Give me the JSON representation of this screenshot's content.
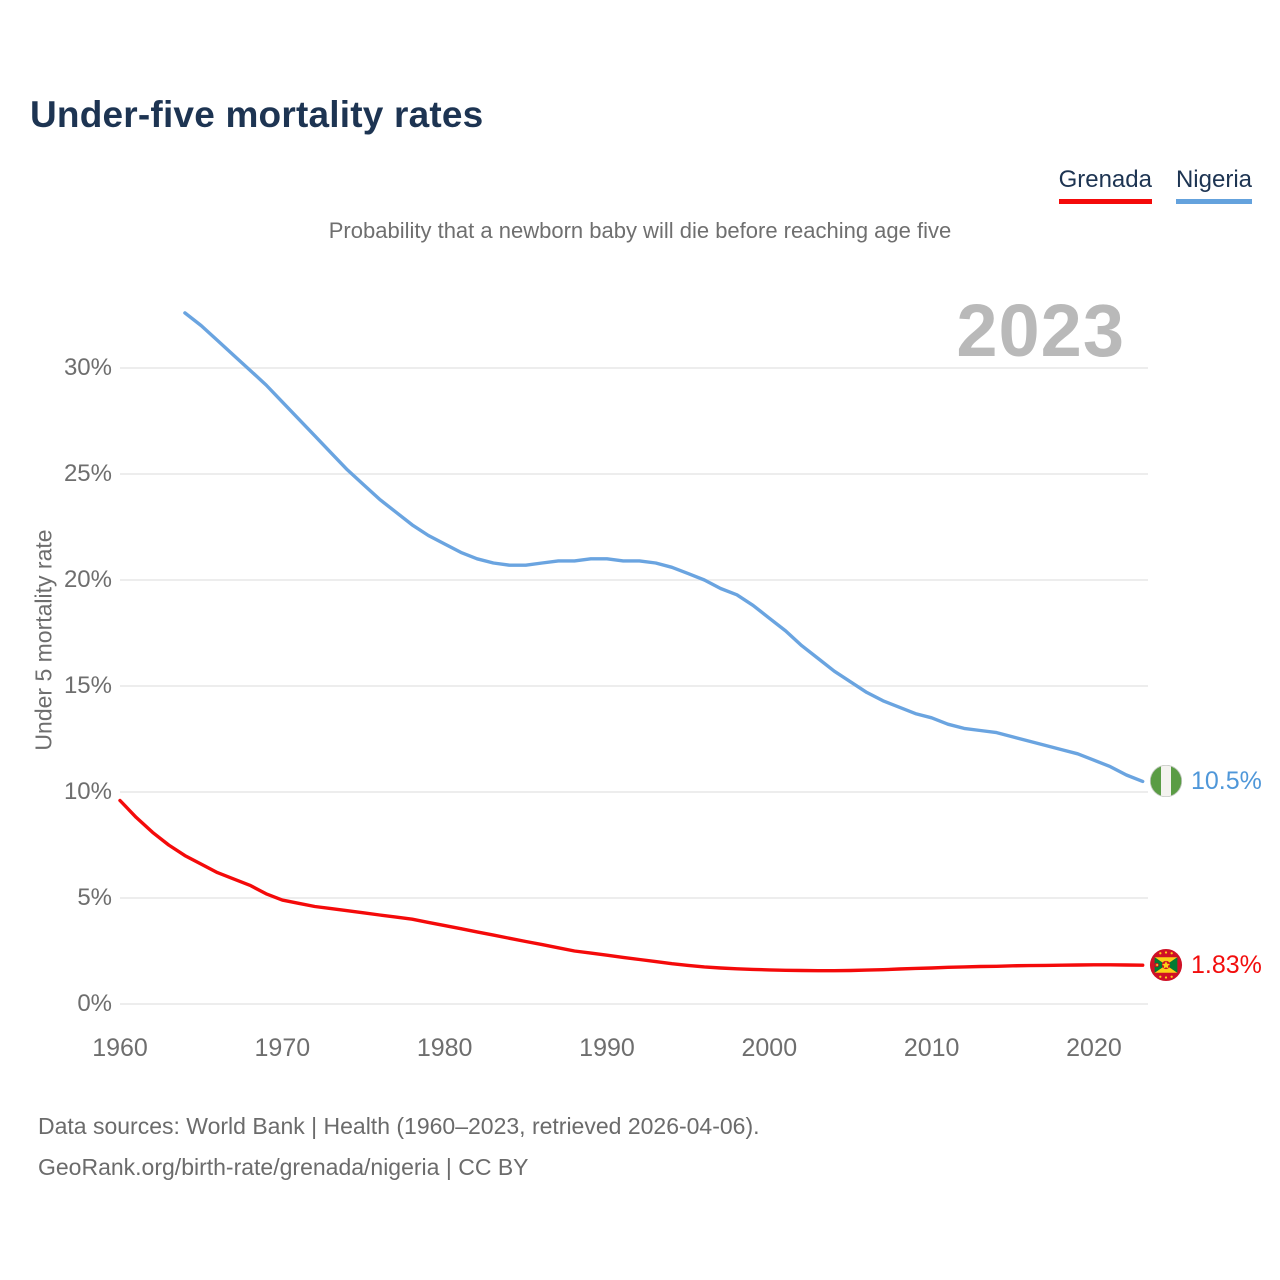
{
  "header": {
    "title": "Under-five mortality rates",
    "subtitle": "Probability that a newborn baby will die before reaching age five",
    "watermark_year": "2023"
  },
  "legend": {
    "items": [
      {
        "label": "Grenada",
        "color": "#f40a0a"
      },
      {
        "label": "Nigeria",
        "color": "#64a2dd"
      }
    ]
  },
  "footer": {
    "line1": "Data sources: World Bank | Health (1960–2023, retrieved 2026-04-06).",
    "line2": "GeoRank.org/birth-rate/grenada/nigeria | CC BY"
  },
  "chart_data": {
    "type": "line",
    "title": "Under-five mortality rates",
    "subtitle": "Probability that a newborn baby will die before reaching age five",
    "xlabel": "",
    "ylabel": "Under 5 mortality rate",
    "xlim": [
      1958.5,
      2024.5
    ],
    "ylim": [
      0,
      33.2
    ],
    "grid": "horizontal",
    "gridline_color": "#e7e7e7",
    "legend_position": "top-right",
    "xticks": [
      1960,
      1970,
      1980,
      1990,
      2000,
      2010,
      2020
    ],
    "yticks": [
      {
        "value": 0,
        "label": "0%"
      },
      {
        "value": 5,
        "label": "5%"
      },
      {
        "value": 10,
        "label": "10%"
      },
      {
        "value": 15,
        "label": "15%"
      },
      {
        "value": 20,
        "label": "20%"
      },
      {
        "value": 25,
        "label": "25%"
      },
      {
        "value": 30,
        "label": "30%"
      }
    ],
    "series": [
      {
        "name": "Grenada",
        "color": "#f40a0a",
        "end_label": "1.83%",
        "flag_icon": "grenada-flag",
        "points": [
          [
            1960,
            9.6
          ],
          [
            1961,
            8.8
          ],
          [
            1962,
            8.1
          ],
          [
            1963,
            7.5
          ],
          [
            1964,
            7.0
          ],
          [
            1965,
            6.6
          ],
          [
            1966,
            6.2
          ],
          [
            1967,
            5.9
          ],
          [
            1968,
            5.6
          ],
          [
            1969,
            5.2
          ],
          [
            1970,
            4.9
          ],
          [
            1971,
            4.75
          ],
          [
            1972,
            4.6
          ],
          [
            1973,
            4.5
          ],
          [
            1974,
            4.4
          ],
          [
            1975,
            4.3
          ],
          [
            1976,
            4.2
          ],
          [
            1977,
            4.1
          ],
          [
            1978,
            4.0
          ],
          [
            1979,
            3.85
          ],
          [
            1980,
            3.7
          ],
          [
            1981,
            3.55
          ],
          [
            1982,
            3.4
          ],
          [
            1983,
            3.25
          ],
          [
            1984,
            3.1
          ],
          [
            1985,
            2.95
          ],
          [
            1986,
            2.8
          ],
          [
            1987,
            2.65
          ],
          [
            1988,
            2.5
          ],
          [
            1989,
            2.4
          ],
          [
            1990,
            2.3
          ],
          [
            1991,
            2.2
          ],
          [
            1992,
            2.1
          ],
          [
            1993,
            2.0
          ],
          [
            1994,
            1.9
          ],
          [
            1995,
            1.82
          ],
          [
            1996,
            1.75
          ],
          [
            1997,
            1.7
          ],
          [
            1998,
            1.66
          ],
          [
            1999,
            1.63
          ],
          [
            2000,
            1.61
          ],
          [
            2001,
            1.59
          ],
          [
            2002,
            1.58
          ],
          [
            2003,
            1.57
          ],
          [
            2004,
            1.57
          ],
          [
            2005,
            1.58
          ],
          [
            2006,
            1.6
          ],
          [
            2007,
            1.62
          ],
          [
            2008,
            1.65
          ],
          [
            2009,
            1.68
          ],
          [
            2010,
            1.7
          ],
          [
            2011,
            1.73
          ],
          [
            2012,
            1.75
          ],
          [
            2013,
            1.77
          ],
          [
            2014,
            1.78
          ],
          [
            2015,
            1.8
          ],
          [
            2016,
            1.81
          ],
          [
            2017,
            1.82
          ],
          [
            2018,
            1.83
          ],
          [
            2019,
            1.84
          ],
          [
            2020,
            1.85
          ],
          [
            2021,
            1.85
          ],
          [
            2022,
            1.84
          ],
          [
            2023,
            1.83
          ]
        ]
      },
      {
        "name": "Nigeria",
        "color": "#6aa4e0",
        "end_label": "10.5%",
        "flag_icon": "nigeria-flag",
        "points": [
          [
            1964,
            32.6
          ],
          [
            1965,
            32.0
          ],
          [
            1966,
            31.3
          ],
          [
            1967,
            30.6
          ],
          [
            1968,
            29.9
          ],
          [
            1969,
            29.2
          ],
          [
            1970,
            28.4
          ],
          [
            1971,
            27.6
          ],
          [
            1972,
            26.8
          ],
          [
            1973,
            26.0
          ],
          [
            1974,
            25.2
          ],
          [
            1975,
            24.5
          ],
          [
            1976,
            23.8
          ],
          [
            1977,
            23.2
          ],
          [
            1978,
            22.6
          ],
          [
            1979,
            22.1
          ],
          [
            1980,
            21.7
          ],
          [
            1981,
            21.3
          ],
          [
            1982,
            21.0
          ],
          [
            1983,
            20.8
          ],
          [
            1984,
            20.7
          ],
          [
            1985,
            20.7
          ],
          [
            1986,
            20.8
          ],
          [
            1987,
            20.9
          ],
          [
            1988,
            20.9
          ],
          [
            1989,
            21.0
          ],
          [
            1990,
            21.0
          ],
          [
            1991,
            20.9
          ],
          [
            1992,
            20.9
          ],
          [
            1993,
            20.8
          ],
          [
            1994,
            20.6
          ],
          [
            1995,
            20.3
          ],
          [
            1996,
            20.0
          ],
          [
            1997,
            19.6
          ],
          [
            1998,
            19.3
          ],
          [
            1999,
            18.8
          ],
          [
            2000,
            18.2
          ],
          [
            2001,
            17.6
          ],
          [
            2002,
            16.9
          ],
          [
            2003,
            16.3
          ],
          [
            2004,
            15.7
          ],
          [
            2005,
            15.2
          ],
          [
            2006,
            14.7
          ],
          [
            2007,
            14.3
          ],
          [
            2008,
            14.0
          ],
          [
            2009,
            13.7
          ],
          [
            2010,
            13.5
          ],
          [
            2011,
            13.2
          ],
          [
            2012,
            13.0
          ],
          [
            2013,
            12.9
          ],
          [
            2014,
            12.8
          ],
          [
            2015,
            12.6
          ],
          [
            2016,
            12.4
          ],
          [
            2017,
            12.2
          ],
          [
            2018,
            12.0
          ],
          [
            2019,
            11.8
          ],
          [
            2020,
            11.5
          ],
          [
            2021,
            11.2
          ],
          [
            2022,
            10.8
          ],
          [
            2023,
            10.5
          ]
        ]
      }
    ]
  }
}
